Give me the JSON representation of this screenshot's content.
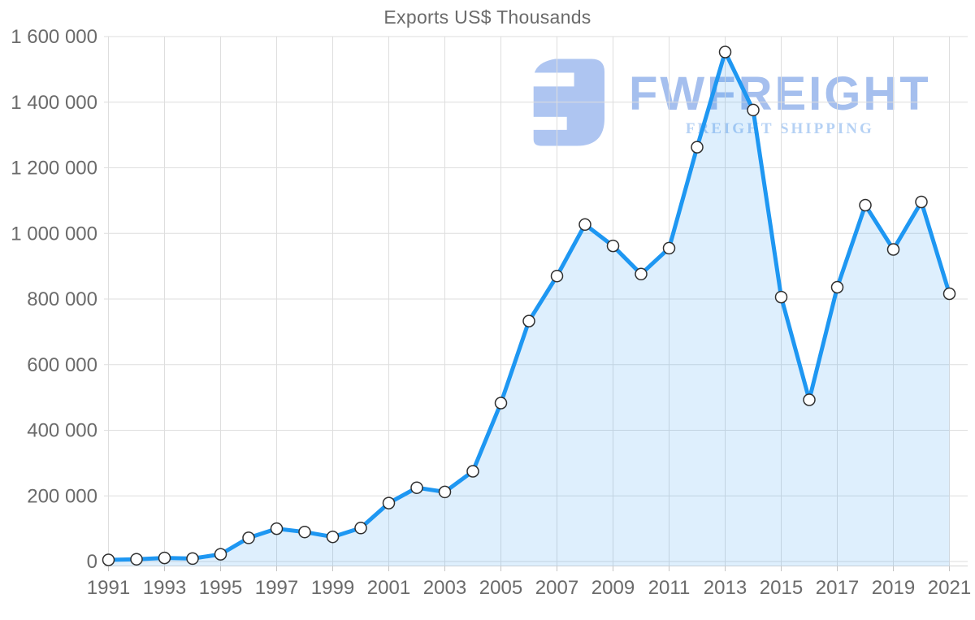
{
  "title": "Exports US$ Thousands",
  "watermark": {
    "brand": "FWFREIGHT",
    "tagline": "FREIGHT SHIPPING"
  },
  "chart_data": {
    "type": "area",
    "title": "Exports US$ Thousands",
    "series_name": "Exports US$ Thousands",
    "x": [
      1991,
      1992,
      1993,
      1994,
      1995,
      1996,
      1997,
      1998,
      1999,
      2000,
      2001,
      2002,
      2003,
      2004,
      2005,
      2006,
      2007,
      2008,
      2009,
      2010,
      2011,
      2012,
      2013,
      2014,
      2015,
      2016,
      2017,
      2018,
      2019,
      2020,
      2021
    ],
    "values": [
      5000,
      7000,
      11000,
      9000,
      22000,
      72000,
      100000,
      90000,
      75000,
      102000,
      178000,
      225000,
      212000,
      275000,
      483000,
      733000,
      870000,
      1027000,
      962000,
      876000,
      955000,
      1263000,
      1553000,
      1376000,
      806000,
      493000,
      836000,
      1086000,
      951000,
      1096000,
      816000
    ],
    "xlabel": "",
    "ylabel": "",
    "ylim": [
      0,
      1600000
    ],
    "grid": true,
    "legend": false,
    "marker": "circle",
    "x_tick_labels": [
      "1991",
      "1993",
      "1995",
      "1997",
      "1999",
      "2001",
      "2003",
      "2005",
      "2007",
      "2009",
      "2011",
      "2013",
      "2015",
      "2017",
      "2019",
      "2021"
    ],
    "y_tick_values": [
      0,
      200000,
      400000,
      600000,
      800000,
      1000000,
      1200000,
      1400000,
      1600000
    ],
    "y_tick_labels": [
      "0",
      "200 000",
      "400 000",
      "600 000",
      "800 000",
      "1 000 000",
      "1 200 000",
      "1 400 000",
      "1 600 000"
    ],
    "colors": {
      "line": "#1e97f2",
      "area_fill": "rgba(33,150,243,0.15)",
      "marker_fill": "#ffffff",
      "marker_stroke": "#2f2f2f",
      "grid": "#dedede",
      "axis_line": "#d4d4d4",
      "tick": "#c4c4c4",
      "axis_text": "#6b6b6b",
      "title_text": "#6b6b6b",
      "logo_glyph": "#aec5f1",
      "logo_brand": "#a5bfee",
      "logo_tagline": "#b5d1f4"
    }
  }
}
